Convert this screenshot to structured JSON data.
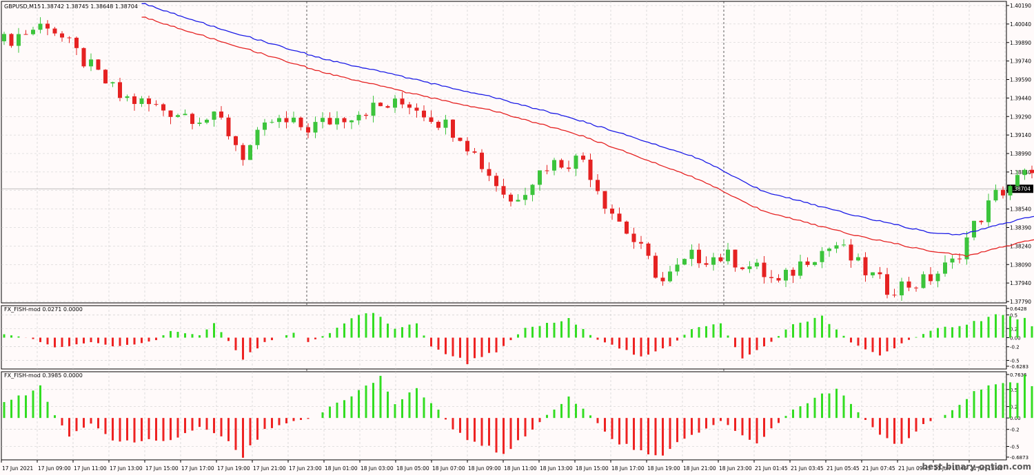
{
  "main": {
    "symbol_label": "GBPUSD,M15",
    "ohlc_label": "1.38742 1.38745 1.38648 1.38704",
    "current_price": "1.38704",
    "price_ticks": [
      "1.40190",
      "1.40040",
      "1.39890",
      "1.39740",
      "1.39590",
      "1.39440",
      "1.39290",
      "1.39140",
      "1.38990",
      "1.38840",
      "1.38690",
      "1.38540",
      "1.38390",
      "1.38240",
      "1.38090",
      "1.37940",
      "1.37790"
    ],
    "chart_data": {
      "type": "candlestick",
      "ylim": [
        1.3779,
        1.4019
      ],
      "current_price": 1.38704,
      "grid": true,
      "candle_count": 145,
      "candle_keypoints": [
        [
          0,
          1.399
        ],
        [
          6,
          1.4005
        ],
        [
          10,
          1.398
        ],
        [
          16,
          1.3945
        ],
        [
          22,
          1.3935
        ],
        [
          30,
          1.3925
        ],
        [
          33,
          1.3898
        ],
        [
          37,
          1.3925
        ],
        [
          42,
          1.392
        ],
        [
          50,
          1.3935
        ],
        [
          56,
          1.394
        ],
        [
          63,
          1.3915
        ],
        [
          66,
          1.389
        ],
        [
          70,
          1.386
        ],
        [
          75,
          1.389
        ],
        [
          80,
          1.3895
        ],
        [
          83,
          1.386
        ],
        [
          88,
          1.382
        ],
        [
          91,
          1.3795
        ],
        [
          95,
          1.3815
        ],
        [
          100,
          1.3815
        ],
        [
          104,
          1.3805
        ],
        [
          107,
          1.3793
        ],
        [
          111,
          1.3815
        ],
        [
          115,
          1.3825
        ],
        [
          118,
          1.3808
        ],
        [
          122,
          1.379
        ],
        [
          127,
          1.3795
        ],
        [
          131,
          1.381
        ],
        [
          134,
          1.384
        ],
        [
          137,
          1.3865
        ],
        [
          141,
          1.3882
        ],
        [
          144,
          1.387
        ]
      ],
      "blue_ma_keypoints": [
        [
          19,
          1.4021
        ],
        [
          30,
          1.4
        ],
        [
          44,
          1.3976
        ],
        [
          56,
          1.396
        ],
        [
          68,
          1.3944
        ],
        [
          80,
          1.3925
        ],
        [
          96,
          1.3895
        ],
        [
          105,
          1.3868
        ],
        [
          118,
          1.3848
        ],
        [
          128,
          1.3835
        ],
        [
          132,
          1.3833
        ],
        [
          144,
          1.3851
        ]
      ],
      "red_ma_keypoints": [
        [
          19,
          1.401
        ],
        [
          30,
          1.399
        ],
        [
          44,
          1.3965
        ],
        [
          56,
          1.3948
        ],
        [
          68,
          1.3933
        ],
        [
          80,
          1.3913
        ],
        [
          96,
          1.3878
        ],
        [
          105,
          1.3852
        ],
        [
          118,
          1.3832
        ],
        [
          128,
          1.382
        ],
        [
          133,
          1.3816
        ],
        [
          144,
          1.3832
        ]
      ]
    }
  },
  "indicator1": {
    "label": "FX_FISH-mod 0.0271 0.0000",
    "ticks": [
      "0.6428",
      "0.5",
      "0.2",
      "0.00",
      "-0.2",
      "-0.5",
      "-0.6283"
    ],
    "chart_data": {
      "type": "histogram",
      "ylim": [
        -0.6283,
        0.6428
      ],
      "keypoints": [
        [
          0,
          0.08
        ],
        [
          4,
          -0.03
        ],
        [
          7,
          -0.22
        ],
        [
          12,
          -0.1
        ],
        [
          16,
          -0.2
        ],
        [
          21,
          -0.05
        ],
        [
          23,
          0.15
        ],
        [
          27,
          0.05
        ],
        [
          29,
          0.3
        ],
        [
          33,
          -0.45
        ],
        [
          36,
          -0.1
        ],
        [
          40,
          0.1
        ],
        [
          42,
          -0.1
        ],
        [
          45,
          0.1
        ],
        [
          48,
          0.45
        ],
        [
          51,
          0.55
        ],
        [
          54,
          0.2
        ],
        [
          57,
          0.3
        ],
        [
          59,
          -0.2
        ],
        [
          64,
          -0.55
        ],
        [
          68,
          -0.3
        ],
        [
          72,
          0.2
        ],
        [
          78,
          0.4
        ],
        [
          82,
          -0.05
        ],
        [
          88,
          -0.4
        ],
        [
          92,
          -0.2
        ],
        [
          95,
          0.2
        ],
        [
          99,
          0.3
        ],
        [
          102,
          -0.45
        ],
        [
          106,
          -0.1
        ],
        [
          109,
          0.3
        ],
        [
          113,
          0.45
        ],
        [
          117,
          -0.1
        ],
        [
          121,
          -0.4
        ],
        [
          125,
          -0.05
        ],
        [
          129,
          0.2
        ],
        [
          133,
          0.3
        ],
        [
          137,
          0.5
        ],
        [
          141,
          0.4
        ],
        [
          144,
          0.03
        ]
      ]
    }
  },
  "indicator2": {
    "label": "FX_FISH-mod 0.3985 0.0000",
    "ticks": [
      "0.7636",
      "0.5",
      "0.2",
      "0.00",
      "-0.2",
      "-0.5",
      "-0.6873"
    ],
    "chart_data": {
      "type": "histogram",
      "ylim": [
        -0.6873,
        0.7636
      ],
      "keypoints": [
        [
          0,
          0.3
        ],
        [
          3,
          0.4
        ],
        [
          5,
          0.55
        ],
        [
          7,
          0.05
        ],
        [
          9,
          -0.3
        ],
        [
          12,
          -0.1
        ],
        [
          16,
          -0.45
        ],
        [
          20,
          -0.35
        ],
        [
          23,
          -0.4
        ],
        [
          27,
          -0.15
        ],
        [
          30,
          -0.3
        ],
        [
          33,
          -0.65
        ],
        [
          36,
          -0.2
        ],
        [
          40,
          -0.05
        ],
        [
          43,
          0.0
        ],
        [
          45,
          0.2
        ],
        [
          48,
          0.4
        ],
        [
          52,
          0.7
        ],
        [
          54,
          0.25
        ],
        [
          57,
          0.5
        ],
        [
          60,
          0.15
        ],
        [
          62,
          -0.2
        ],
        [
          65,
          -0.45
        ],
        [
          69,
          -0.6
        ],
        [
          73,
          -0.2
        ],
        [
          75,
          0.05
        ],
        [
          78,
          0.35
        ],
        [
          81,
          0.05
        ],
        [
          84,
          -0.4
        ],
        [
          88,
          -0.55
        ],
        [
          91,
          -0.7
        ],
        [
          93,
          -0.45
        ],
        [
          96,
          -0.25
        ],
        [
          99,
          -0.05
        ],
        [
          102,
          -0.3
        ],
        [
          104,
          -0.45
        ],
        [
          106,
          -0.2
        ],
        [
          109,
          0.15
        ],
        [
          113,
          0.4
        ],
        [
          115,
          0.5
        ],
        [
          118,
          0.1
        ],
        [
          121,
          -0.3
        ],
        [
          124,
          -0.5
        ],
        [
          127,
          -0.1
        ],
        [
          130,
          0.05
        ],
        [
          132,
          0.25
        ],
        [
          135,
          0.55
        ],
        [
          139,
          0.6
        ],
        [
          141,
          0.7
        ],
        [
          144,
          0.45
        ]
      ]
    }
  },
  "time_axis": [
    "17 Jun 2021",
    "17 Jun 09:00",
    "17 Jun 11:00",
    "17 Jun 13:00",
    "17 Jun 15:00",
    "17 Jun 17:00",
    "17 Jun 19:00",
    "17 Jun 21:00",
    "17 Jun 23:00",
    "18 Jun 01:00",
    "18 Jun 03:00",
    "18 Jun 05:00",
    "18 Jun 07:00",
    "18 Jun 09:00",
    "18 Jun 11:00",
    "18 Jun 13:00",
    "18 Jun 15:00",
    "18 Jun 17:00",
    "18 Jun 19:00",
    "18 Jun 21:00",
    "18 Jun 23:00",
    "21 Jun 01:45",
    "21 Jun 03:45",
    "21 Jun 05:45",
    "21 Jun 07:45",
    "21 Jun 09:45",
    "21 Jun 11:45",
    "21 Jun 13:45"
  ],
  "watermark": "best-binary-option.com",
  "colors": {
    "bull": "#3cc43c",
    "bear": "#e52222",
    "blue_ma": "#1a1ae6",
    "red_ma": "#e52222",
    "hist_up": "#33dd22",
    "hist_down": "#ee2222",
    "grid": "#c8c8c8",
    "background": "#fffafa"
  }
}
